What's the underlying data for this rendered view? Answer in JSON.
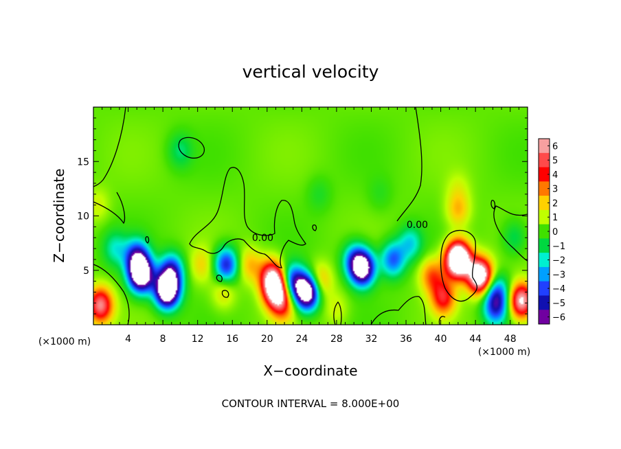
{
  "chart_data": {
    "type": "heatmap",
    "title": "vertical velocity",
    "xlabel": "X−coordinate",
    "ylabel": "Z−coordinate",
    "x_unit": "(×1000 m)",
    "xlim": [
      0,
      50
    ],
    "ylim": [
      0,
      20
    ],
    "x_ticks": [
      4,
      8,
      12,
      16,
      20,
      24,
      28,
      32,
      36,
      40,
      44,
      48
    ],
    "x_tick_labels": [
      "4",
      "8",
      "12",
      "16",
      "20",
      "24",
      "28",
      "32",
      "36",
      "40",
      "44",
      "48"
    ],
    "y_ticks": [
      5,
      10,
      15
    ],
    "y_tick_labels": [
      "5",
      "10",
      "15"
    ],
    "colorbar": {
      "levels": [
        6,
        5,
        4,
        3,
        2,
        1,
        0,
        -1,
        -2,
        -3,
        -4,
        -5,
        -6
      ],
      "labels": [
        "6",
        "5",
        "4",
        "3",
        "2",
        "1",
        "0",
        "−1",
        "−2",
        "−3",
        "−4",
        "−5",
        "−6"
      ],
      "colors": [
        "#f7a0a0",
        "#ff4a4a",
        "#ff0000",
        "#ff7800",
        "#ffd000",
        "#c0ff00",
        "#40e000",
        "#00d840",
        "#00f0d0",
        "#00a0ff",
        "#2040ff",
        "#1010b0",
        "#7000a0"
      ]
    },
    "contour_labels": [
      {
        "text": "0.00",
        "x": 19.5,
        "y": 8.0
      },
      {
        "text": "0.00",
        "x": 37.3,
        "y": 9.2
      }
    ],
    "features": [
      {
        "x": 0.8,
        "z": 1.8,
        "w": 5.5
      },
      {
        "x": 5.0,
        "z": 6.2,
        "w": -5.0
      },
      {
        "x": 5.5,
        "z": 4.6,
        "w": -9.0
      },
      {
        "x": 8.5,
        "z": 3.2,
        "w": -10.0
      },
      {
        "x": 9.0,
        "z": 5.0,
        "w": -4.5
      },
      {
        "x": 2.5,
        "z": 7.0,
        "w": -2.0
      },
      {
        "x": 12.5,
        "z": 5.5,
        "w": 1.5
      },
      {
        "x": 15.3,
        "z": 5.5,
        "w": -5.0
      },
      {
        "x": 15.0,
        "z": 3.0,
        "w": 1.5
      },
      {
        "x": 18.0,
        "z": 5.5,
        "w": 2.0
      },
      {
        "x": 20.5,
        "z": 4.5,
        "w": 4.5
      },
      {
        "x": 21.0,
        "z": 3.2,
        "w": 7.0
      },
      {
        "x": 21.8,
        "z": 1.8,
        "w": 3.0
      },
      {
        "x": 23.0,
        "z": 4.0,
        "w": -4.5
      },
      {
        "x": 24.6,
        "z": 3.0,
        "w": -9.0
      },
      {
        "x": 26.0,
        "z": 4.0,
        "w": 2.5
      },
      {
        "x": 28.0,
        "z": 1.5,
        "w": 1.0
      },
      {
        "x": 30.0,
        "z": 6.0,
        "w": -3.0
      },
      {
        "x": 31.0,
        "z": 5.2,
        "w": -8.0
      },
      {
        "x": 34.5,
        "z": 6.0,
        "w": -4.0
      },
      {
        "x": 36.5,
        "z": 7.5,
        "w": -2.5
      },
      {
        "x": 39.0,
        "z": 4.5,
        "w": 3.0
      },
      {
        "x": 40.3,
        "z": 2.5,
        "w": 4.0
      },
      {
        "x": 42.0,
        "z": 6.0,
        "w": 11.0
      },
      {
        "x": 42.0,
        "z": 10.5,
        "w": 2.0
      },
      {
        "x": 44.5,
        "z": 4.5,
        "w": 8.5
      },
      {
        "x": 42.0,
        "z": 12.5,
        "w": 0.8
      },
      {
        "x": 46.5,
        "z": 3.0,
        "w": -3.5
      },
      {
        "x": 46.3,
        "z": 1.5,
        "w": -4.0
      },
      {
        "x": 49.3,
        "z": 2.2,
        "w": 6.5
      },
      {
        "x": 48.5,
        "z": 8.0,
        "w": -1.5
      },
      {
        "x": 10.0,
        "z": 16.0,
        "w": -1.5
      },
      {
        "x": 0.5,
        "z": 11.0,
        "w": 1.0
      },
      {
        "x": 26.0,
        "z": 12.0,
        "w": -0.8
      },
      {
        "x": 33.0,
        "z": 12.0,
        "w": -0.6
      }
    ]
  },
  "footer": {
    "contour_interval": "CONTOUR INTERVAL =  8.000E+00"
  }
}
